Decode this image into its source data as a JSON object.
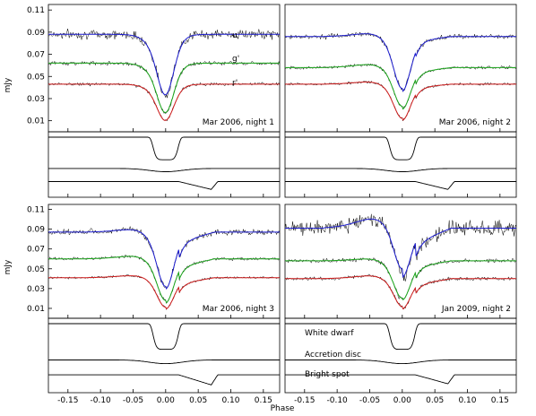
{
  "axis_labels": {
    "y": "mJy",
    "x": "Phase"
  },
  "band_labels": [
    "u'",
    "g'",
    "r'"
  ],
  "component_labels": [
    "White dwarf",
    "Accretion disc",
    "Bright spot"
  ],
  "colors": {
    "u": "#1c1cd0",
    "g": "#1aa61a",
    "r": "#d01c1c",
    "data": "#000000"
  },
  "chart_data": [
    {
      "type": "line",
      "title": "Mar 2006, night 1",
      "xlabel": "",
      "ylabel": "mJy",
      "xlim": [
        -0.18,
        0.175
      ],
      "ylim": [
        0.0,
        0.115
      ],
      "yticks": [
        "0.01",
        "0.03",
        "0.05",
        "0.07",
        "0.09",
        "0.11"
      ],
      "xticks": [],
      "series": [
        {
          "name": "u'",
          "baseline": 0.088,
          "hump": 0.0,
          "depth": 0.055,
          "egress": 0.0,
          "noise": 0.0035
        },
        {
          "name": "g'",
          "baseline": 0.062,
          "hump": 0.0,
          "depth": 0.045,
          "egress": 0.0,
          "noise": 0.0015
        },
        {
          "name": "r'",
          "baseline": 0.043,
          "hump": 0.0,
          "depth": 0.033,
          "egress": 0.0,
          "noise": 0.0012
        }
      ],
      "components": {
        "wd_depth": 0.3,
        "disc_dip": 0.02,
        "spot_step": 0.04
      }
    },
    {
      "type": "line",
      "title": "Mar 2006, night 2",
      "xlabel": "",
      "ylabel": "",
      "xlim": [
        -0.18,
        0.175
      ],
      "ylim": [
        0.0,
        0.115
      ],
      "yticks": [],
      "xticks": [],
      "series": [
        {
          "name": "u'",
          "baseline": 0.086,
          "hump": 0.004,
          "depth": 0.05,
          "egress": 0.004,
          "noise": 0.0018
        },
        {
          "name": "g'",
          "baseline": 0.058,
          "hump": 0.004,
          "depth": 0.038,
          "egress": 0.004,
          "noise": 0.0012
        },
        {
          "name": "r'",
          "baseline": 0.043,
          "hump": 0.003,
          "depth": 0.033,
          "egress": 0.003,
          "noise": 0.001
        }
      ],
      "components": {
        "wd_depth": 0.3,
        "disc_dip": 0.02,
        "spot_step": 0.04
      }
    },
    {
      "type": "line",
      "title": "Mar 2006, night 3",
      "xlabel": "",
      "ylabel": "mJy",
      "xlim": [
        -0.18,
        0.175
      ],
      "ylim": [
        0.0,
        0.115
      ],
      "yticks": [
        "0.01",
        "0.03",
        "0.05",
        "0.07",
        "0.09",
        "0.11"
      ],
      "xticks": [
        "-0.15",
        "-0.10",
        "-0.05",
        "0.00",
        "0.05",
        "0.10",
        "0.15"
      ],
      "series": [
        {
          "name": "u'",
          "baseline": 0.087,
          "hump": 0.004,
          "depth": 0.058,
          "egress": 0.01,
          "noise": 0.0025
        },
        {
          "name": "g'",
          "baseline": 0.06,
          "hump": 0.004,
          "depth": 0.045,
          "egress": 0.008,
          "noise": 0.0013
        },
        {
          "name": "r'",
          "baseline": 0.041,
          "hump": 0.003,
          "depth": 0.032,
          "egress": 0.006,
          "noise": 0.0011
        }
      ],
      "components": {
        "wd_depth": 0.3,
        "disc_dip": 0.02,
        "spot_step": 0.045
      }
    },
    {
      "type": "line",
      "title": "Jan 2009, night 2",
      "xlabel": "Phase",
      "ylabel": "",
      "xlim": [
        -0.18,
        0.175
      ],
      "ylim": [
        0.0,
        0.115
      ],
      "yticks": [],
      "xticks": [
        "-0.15",
        "-0.10",
        "-0.05",
        "0.00",
        "0.05",
        "0.10",
        "0.15"
      ],
      "series": [
        {
          "name": "u'",
          "baseline": 0.091,
          "hump": 0.012,
          "depth": 0.05,
          "egress": 0.015,
          "noise": 0.006
        },
        {
          "name": "g'",
          "baseline": 0.058,
          "hump": 0.003,
          "depth": 0.04,
          "egress": 0.006,
          "noise": 0.0018
        },
        {
          "name": "r'",
          "baseline": 0.04,
          "hump": 0.004,
          "depth": 0.031,
          "egress": 0.006,
          "noise": 0.0015
        }
      ],
      "components": {
        "wd_depth": 0.3,
        "disc_dip": 0.02,
        "spot_step": 0.04
      }
    }
  ]
}
